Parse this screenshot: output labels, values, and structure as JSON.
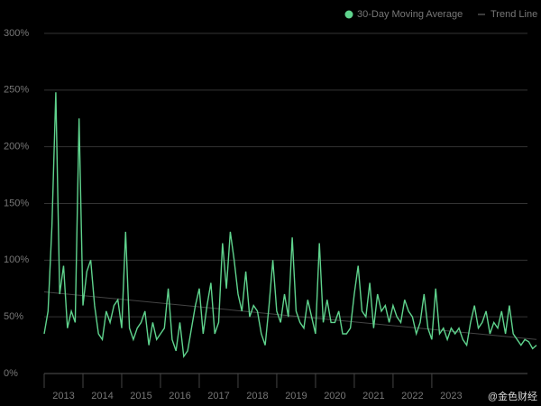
{
  "chart_data": {
    "type": "line",
    "watermark": "@金色财经",
    "x": [
      2013,
      2013.1,
      2013.2,
      2013.3,
      2013.4,
      2013.5,
      2013.6,
      2013.7,
      2013.8,
      2013.9,
      2014,
      2014.1,
      2014.2,
      2014.3,
      2014.4,
      2014.5,
      2014.6,
      2014.7,
      2014.8,
      2014.9,
      2015,
      2015.1,
      2015.2,
      2015.3,
      2015.4,
      2015.5,
      2015.6,
      2015.7,
      2015.8,
      2015.9,
      2016,
      2016.1,
      2016.2,
      2016.3,
      2016.4,
      2016.5,
      2016.6,
      2016.7,
      2016.8,
      2016.9,
      2017,
      2017.1,
      2017.2,
      2017.3,
      2017.4,
      2017.5,
      2017.6,
      2017.7,
      2017.8,
      2017.9,
      2018,
      2018.1,
      2018.2,
      2018.3,
      2018.4,
      2018.5,
      2018.6,
      2018.7,
      2018.8,
      2018.9,
      2019,
      2019.1,
      2019.2,
      2019.3,
      2019.4,
      2019.5,
      2019.6,
      2019.7,
      2019.8,
      2019.9,
      2020,
      2020.1,
      2020.2,
      2020.3,
      2020.4,
      2020.5,
      2020.6,
      2020.7,
      2020.8,
      2020.9,
      2021,
      2021.1,
      2021.2,
      2021.3,
      2021.4,
      2021.5,
      2021.6,
      2021.7,
      2021.8,
      2021.9,
      2022,
      2022.1,
      2022.2,
      2022.3,
      2022.4,
      2022.5,
      2022.6,
      2022.7,
      2022.8,
      2022.9,
      2023,
      2023.1,
      2023.2,
      2023.3,
      2023.4,
      2023.5,
      2023.6,
      2023.7,
      2023.8,
      2023.9,
      2024,
      2024.1,
      2024.2,
      2024.3,
      2024.4,
      2024.5,
      2024.6,
      2024.7,
      2024.8,
      2024.9,
      2025,
      2025.1,
      2025.2,
      2025.3,
      2025.4,
      2025.5,
      2025.6,
      2025.7
    ],
    "series": [
      {
        "name": "30-Day Moving Average",
        "color": "#5fd38d",
        "values": [
          35,
          55,
          130,
          248,
          70,
          95,
          40,
          55,
          45,
          225,
          60,
          90,
          100,
          60,
          35,
          30,
          55,
          45,
          60,
          65,
          40,
          125,
          40,
          30,
          40,
          45,
          55,
          25,
          45,
          30,
          35,
          40,
          75,
          30,
          20,
          45,
          15,
          20,
          40,
          60,
          75,
          35,
          60,
          80,
          35,
          45,
          115,
          75,
          125,
          100,
          70,
          55,
          90,
          50,
          60,
          55,
          35,
          25,
          60,
          100,
          55,
          45,
          70,
          50,
          120,
          55,
          45,
          40,
          65,
          50,
          35,
          115,
          45,
          65,
          45,
          45,
          55,
          35,
          35,
          40,
          70,
          95,
          55,
          50,
          80,
          40,
          70,
          55,
          60,
          45,
          60,
          50,
          45,
          65,
          55,
          50,
          35,
          45,
          70,
          40,
          30,
          75,
          35,
          40,
          30,
          40,
          35,
          40,
          30,
          25,
          45,
          60,
          40,
          45,
          55,
          35,
          45,
          40,
          55,
          35,
          60,
          35,
          30,
          25,
          30,
          28,
          22,
          25
        ]
      },
      {
        "name": "Trend Line",
        "color": "#444444",
        "x": [
          2013,
          2025.7
        ],
        "values": [
          72,
          30
        ]
      }
    ],
    "xlim": [
      2013,
      2025.77
    ],
    "xticks": [
      {
        "value": 2013,
        "label": "2013"
      },
      {
        "value": 2014,
        "label": "2014"
      },
      {
        "value": 2015,
        "label": "2015"
      },
      {
        "value": 2016,
        "label": "2016"
      },
      {
        "value": 2017,
        "label": "2017"
      },
      {
        "value": 2018,
        "label": "2018"
      },
      {
        "value": 2019,
        "label": "2019"
      },
      {
        "value": 2020,
        "label": "2020"
      },
      {
        "value": 2021,
        "label": "2021"
      },
      {
        "value": 2022,
        "label": "2022"
      },
      {
        "value": 2023,
        "label": "2023"
      }
    ],
    "ylim": [
      0,
      300
    ],
    "yticks": [
      {
        "value": 0,
        "label": "0%"
      },
      {
        "value": 50,
        "label": "50%"
      },
      {
        "value": 100,
        "label": "100%"
      },
      {
        "value": 150,
        "label": "150%"
      },
      {
        "value": 200,
        "label": "200%"
      },
      {
        "value": 250,
        "label": "250%"
      },
      {
        "value": 300,
        "label": "300%"
      }
    ],
    "grid": true,
    "legend": "top-right"
  }
}
